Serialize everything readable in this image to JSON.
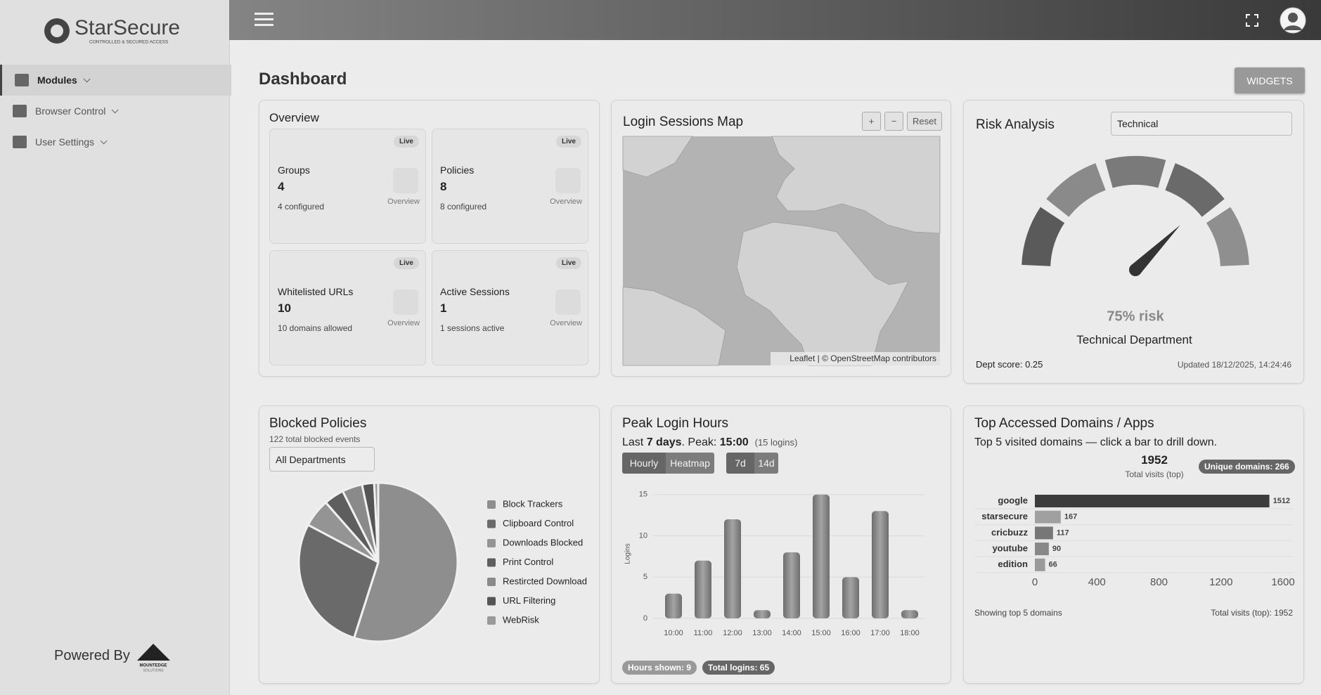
{
  "brand": {
    "name": "StarSecure",
    "tagline": "CONTROLLED & SECURED ACCESS"
  },
  "nav": [
    {
      "label": "Modules"
    },
    {
      "label": "Browser Control"
    },
    {
      "label": "User Settings"
    }
  ],
  "powered_by": {
    "text": "Powered By",
    "company": "MOUNTEDGE",
    "company_sub": "SOLUTIONS"
  },
  "header": {
    "title": "Dashboard",
    "button": "WIDGETS"
  },
  "overview": {
    "title": "Overview",
    "cards": [
      {
        "badge": "Live",
        "label": "Groups",
        "value": 4,
        "note": "4 configured",
        "link": "Overview"
      },
      {
        "badge": "Live",
        "label": "Policies",
        "value": 8,
        "note": "8 configured",
        "link": "Overview"
      },
      {
        "badge": "Live",
        "label": "Whitelisted URLs",
        "value": 10,
        "note": "10 domains allowed",
        "link": "Overview"
      },
      {
        "badge": "Live",
        "label": "Active Sessions",
        "value": 1,
        "note": "1 sessions active",
        "link": "Overview"
      }
    ]
  },
  "map": {
    "title": "Login Sessions Map",
    "controls": [
      "+",
      "−",
      "Reset"
    ],
    "attribution": "Leaflet | © OpenStreetMap contributors"
  },
  "risk": {
    "title": "Risk Analysis",
    "select": "Technical",
    "gauge": {
      "value": 75,
      "value_label": "75% risk"
    },
    "department": "Technical Department",
    "score": "Dept score: 0.25",
    "updated": "Updated 18/12/2025, 14:24:46"
  },
  "chart_data": [
    {
      "type": "pie",
      "title": "Blocked Policies",
      "subtitle": "122 total blocked events",
      "filter": "All Departments",
      "categories": [
        "Block Trackers",
        "Clipboard Control",
        "Downloads Blocked",
        "Print Control",
        "Restircted Download",
        "URL Filtering",
        "WebRisk"
      ],
      "values": [
        67,
        34,
        7,
        5,
        5,
        3,
        1
      ],
      "colors": [
        "#8e8e8e",
        "#6a6a6a",
        "#949494",
        "#5e5e5e",
        "#8a8a8a",
        "#555555",
        "#9a9a9a"
      ]
    },
    {
      "type": "bar",
      "title": "Peak Login Hours",
      "summary": [
        "Last",
        "7 days",
        ". Peak:",
        "15:00",
        "(15 logins)"
      ],
      "buttons": [
        "Hourly",
        "Heatmap",
        "7d",
        "14d"
      ],
      "y_label": "Logins",
      "categories": [
        "10:00",
        "11:00",
        "12:00",
        "13:00",
        "14:00",
        "15:00",
        "16:00",
        "17:00",
        "18:00"
      ],
      "values": [
        3,
        7,
        12,
        1,
        8,
        15,
        5,
        13,
        1
      ],
      "color": "#8a8a8a",
      "ylim": [
        0,
        16
      ],
      "yticks": [
        0,
        5,
        10,
        15
      ],
      "grid": true,
      "footer": [
        "Hours shown: 9",
        "Total logins: 65"
      ]
    },
    {
      "type": "hbar",
      "title": "Top Accessed Domains / Apps",
      "subtitle": "Top 5 visited domains — click a bar to drill down.",
      "total": 1952,
      "total_label": "Total visits (top)",
      "badge": "Unique domains: 266",
      "categories": [
        "google",
        "starsecure",
        "cricbuzz",
        "youtube",
        "edition"
      ],
      "values": [
        1512,
        167,
        117,
        90,
        66
      ],
      "colors": [
        "#3c3c3c",
        "#a0a0a0",
        "#777777",
        "#888888",
        "#9a9a9a"
      ],
      "xlim": [
        0,
        1600
      ],
      "xticks": [
        0,
        400,
        800,
        1200,
        1600
      ],
      "footer_left": "Showing top 5 domains",
      "footer_right": "Total visits (top): 1952"
    }
  ]
}
